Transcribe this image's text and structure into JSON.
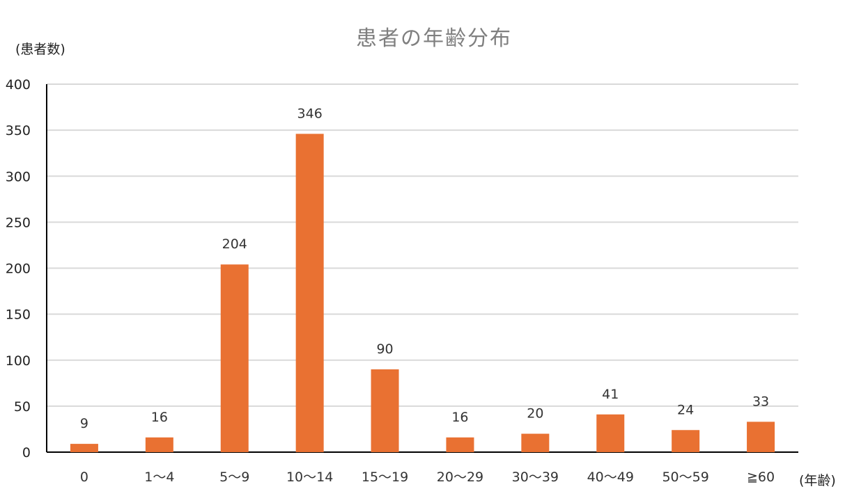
{
  "chart_data": {
    "type": "bar",
    "title": "患者の年齢分布",
    "ylabel": "(患者数)",
    "xlabel": "(年齢)",
    "categories": [
      "0",
      "1～4",
      "5～9",
      "10～14",
      "15～19",
      "20～29",
      "30～39",
      "40～49",
      "50～59",
      "≧60"
    ],
    "values": [
      9,
      16,
      204,
      346,
      90,
      16,
      20,
      41,
      24,
      33
    ],
    "ylim": [
      0,
      400
    ],
    "yticks": [
      0,
      50,
      100,
      150,
      200,
      250,
      300,
      350,
      400
    ],
    "grid": true,
    "data_labels": true,
    "bar_color": "#E97132",
    "grid_color": "#d9d9d9",
    "axis_color": "#000000"
  }
}
